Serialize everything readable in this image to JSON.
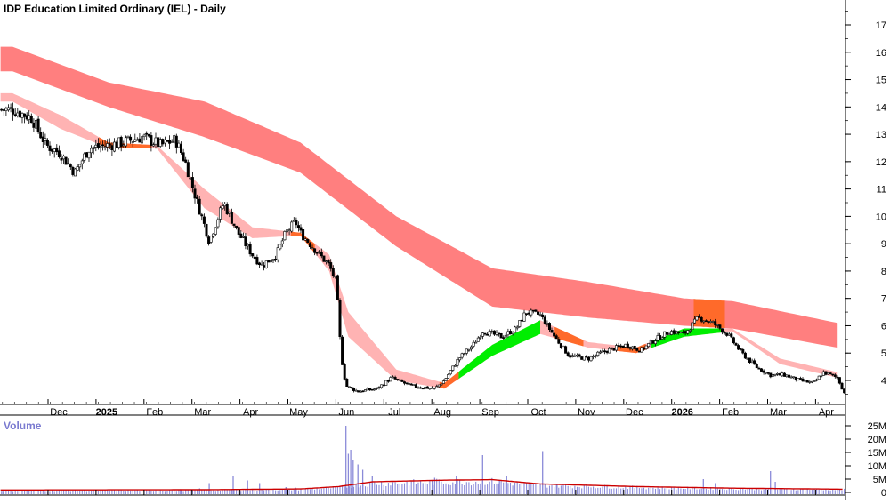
{
  "title": "IDP Education Limited Ordinary (IEL) - Daily",
  "colors": {
    "long_band": "#ff7f7f",
    "short_band": "#ffb3b3",
    "band_bull": "#00ee00",
    "band_cross": "#ff6a2a",
    "candle": "#000000",
    "volume_bar": "#8a8ad8",
    "volume_ma": "#cc0000",
    "grid": "#000000"
  },
  "chart_data": [
    {
      "type": "candlestick",
      "title": "IDP Education Limited Ordinary (IEL) - Daily",
      "x_tick_labels": [
        "Dec",
        "2025",
        "Feb",
        "Mar",
        "Apr",
        "May",
        "Jun",
        "Jul",
        "Aug",
        "Sep",
        "Oct",
        "Nov",
        "Dec",
        "2026",
        "Feb",
        "Mar",
        "Apr"
      ],
      "y_tick_labels": [
        "4",
        "5",
        "6",
        "7",
        "8",
        "9",
        "10",
        "11",
        "12",
        "13",
        "14",
        "15",
        "16",
        "17"
      ],
      "ylim": [
        3.3,
        17.8
      ],
      "x_month_index": [
        0,
        1,
        2,
        3,
        4,
        5,
        6,
        7,
        8,
        9,
        10,
        11,
        12,
        13,
        14,
        15,
        16
      ],
      "price_keypoints": [
        [
          -1.0,
          13.9
        ],
        [
          -0.6,
          13.6
        ],
        [
          -0.3,
          12.6
        ],
        [
          0.0,
          12.3
        ],
        [
          0.3,
          11.6
        ],
        [
          0.6,
          12.5
        ],
        [
          1.0,
          12.6
        ],
        [
          1.3,
          12.7
        ],
        [
          1.7,
          12.9
        ],
        [
          2.1,
          12.6
        ],
        [
          2.4,
          12.8
        ],
        [
          2.6,
          12.0
        ],
        [
          2.8,
          10.8
        ],
        [
          3.1,
          9.1
        ],
        [
          3.4,
          10.5
        ],
        [
          3.7,
          9.4
        ],
        [
          4.0,
          8.6
        ],
        [
          4.2,
          8.2
        ],
        [
          4.5,
          8.6
        ],
        [
          4.7,
          9.4
        ],
        [
          4.9,
          9.8
        ],
        [
          5.0,
          9.4
        ],
        [
          5.3,
          8.8
        ],
        [
          5.6,
          8.2
        ],
        [
          5.75,
          7.6
        ],
        [
          5.85,
          4.9
        ],
        [
          5.95,
          3.8
        ],
        [
          6.2,
          3.6
        ],
        [
          6.6,
          3.7
        ],
        [
          6.9,
          4.1
        ],
        [
          7.3,
          3.8
        ],
        [
          7.8,
          3.7
        ],
        [
          8.0,
          4.0
        ],
        [
          8.3,
          4.8
        ],
        [
          8.6,
          5.3
        ],
        [
          8.8,
          5.8
        ],
        [
          9.2,
          5.6
        ],
        [
          9.5,
          5.9
        ],
        [
          9.7,
          6.5
        ],
        [
          10.0,
          6.4
        ],
        [
          10.3,
          5.6
        ],
        [
          10.6,
          4.9
        ],
        [
          11.0,
          4.8
        ],
        [
          11.4,
          5.1
        ],
        [
          11.8,
          5.3
        ],
        [
          12.1,
          5.1
        ],
        [
          12.4,
          5.5
        ],
        [
          12.7,
          5.8
        ],
        [
          13.0,
          5.7
        ],
        [
          13.3,
          6.3
        ],
        [
          13.6,
          6.1
        ],
        [
          13.9,
          5.7
        ],
        [
          14.2,
          5.0
        ],
        [
          14.5,
          4.5
        ],
        [
          14.8,
          4.2
        ],
        [
          15.1,
          4.2
        ],
        [
          15.4,
          4.0
        ],
        [
          15.7,
          3.9
        ],
        [
          15.9,
          4.3
        ],
        [
          16.2,
          4.1
        ],
        [
          16.35,
          3.5
        ]
      ],
      "long_band_top": [
        [
          -1.0,
          16.2
        ],
        [
          1.0,
          14.9
        ],
        [
          3.0,
          14.2
        ],
        [
          5.0,
          12.7
        ],
        [
          7.0,
          10.0
        ],
        [
          9.0,
          8.1
        ],
        [
          11.0,
          7.6
        ],
        [
          13.0,
          7.0
        ],
        [
          14.0,
          6.9
        ],
        [
          16.2,
          6.1
        ]
      ],
      "long_band_bottom": [
        [
          -1.0,
          15.3
        ],
        [
          1.0,
          14.0
        ],
        [
          3.0,
          12.9
        ],
        [
          5.0,
          11.6
        ],
        [
          7.0,
          8.9
        ],
        [
          9.0,
          6.7
        ],
        [
          11.0,
          6.3
        ],
        [
          13.0,
          6.0
        ],
        [
          14.0,
          5.9
        ],
        [
          16.2,
          5.2
        ]
      ],
      "short_band_top": [
        [
          -1.0,
          14.5
        ],
        [
          0.0,
          13.7
        ],
        [
          1.0,
          12.7
        ],
        [
          2.0,
          12.6
        ],
        [
          3.0,
          11.0
        ],
        [
          4.0,
          9.6
        ],
        [
          5.0,
          9.4
        ],
        [
          5.6,
          8.6
        ],
        [
          6.0,
          6.5
        ],
        [
          7.0,
          4.4
        ],
        [
          8.0,
          3.9
        ],
        [
          9.0,
          5.3
        ],
        [
          10.0,
          6.2
        ],
        [
          11.0,
          5.4
        ],
        [
          12.0,
          5.2
        ],
        [
          13.0,
          5.9
        ],
        [
          14.0,
          5.9
        ],
        [
          15.0,
          4.8
        ],
        [
          16.2,
          4.3
        ]
      ],
      "short_band_bottom": [
        [
          -1.0,
          14.2
        ],
        [
          0.0,
          13.2
        ],
        [
          1.0,
          12.5
        ],
        [
          2.0,
          12.5
        ],
        [
          3.0,
          10.3
        ],
        [
          4.0,
          9.2
        ],
        [
          5.0,
          9.3
        ],
        [
          5.6,
          8.0
        ],
        [
          6.0,
          5.6
        ],
        [
          7.0,
          4.0
        ],
        [
          8.0,
          3.7
        ],
        [
          9.0,
          4.9
        ],
        [
          10.0,
          5.7
        ],
        [
          11.0,
          5.2
        ],
        [
          12.0,
          5.0
        ],
        [
          13.0,
          5.6
        ],
        [
          14.0,
          5.8
        ],
        [
          15.0,
          4.6
        ],
        [
          16.2,
          4.1
        ]
      ],
      "band_highlights": [
        {
          "from": 0.8,
          "to": 1.9,
          "color": "cross"
        },
        {
          "from": 4.8,
          "to": 5.3,
          "color": "cross"
        },
        {
          "from": 7.9,
          "to": 8.3,
          "color": "cross"
        },
        {
          "from": 8.3,
          "to": 10.0,
          "color": "bull"
        },
        {
          "from": 10.3,
          "to": 10.9,
          "color": "cross"
        },
        {
          "from": 11.6,
          "to": 12.2,
          "color": "cross"
        },
        {
          "from": 12.3,
          "to": 13.8,
          "color": "bull"
        }
      ],
      "long_band_highlight": {
        "from": 13.2,
        "to": 13.85,
        "color": "cross"
      }
    },
    {
      "type": "bar",
      "title": "Volume",
      "y_tick_labels": [
        "0",
        "5M",
        "10M",
        "15M",
        "20M",
        "25M"
      ],
      "ylim": [
        0,
        27
      ],
      "avg_keypoints": [
        [
          -1.0,
          0.9
        ],
        [
          3.0,
          1.0
        ],
        [
          5.0,
          1.3
        ],
        [
          5.8,
          2.2
        ],
        [
          6.5,
          4.0
        ],
        [
          8.0,
          4.6
        ],
        [
          9.0,
          4.8
        ],
        [
          10.0,
          3.2
        ],
        [
          12.0,
          2.2
        ],
        [
          14.0,
          1.6
        ],
        [
          16.3,
          1.2
        ]
      ],
      "spikes": [
        [
          -1.2,
          0.6
        ],
        [
          2.5,
          1.2
        ],
        [
          2.9,
          1.5
        ],
        [
          3.1,
          3.5
        ],
        [
          3.6,
          6.0
        ],
        [
          3.9,
          4.5
        ],
        [
          4.15,
          3.5
        ],
        [
          4.7,
          2.0
        ],
        [
          4.9,
          1.8
        ],
        [
          5.95,
          25.0
        ],
        [
          6.0,
          14.5
        ],
        [
          6.05,
          16.0
        ],
        [
          6.1,
          12.0
        ],
        [
          6.2,
          10.5
        ],
        [
          6.3,
          8.5
        ],
        [
          6.5,
          6.0
        ],
        [
          7.8,
          5.5
        ],
        [
          8.25,
          6.0
        ],
        [
          8.8,
          14.0
        ],
        [
          9.15,
          4.5
        ],
        [
          9.3,
          6.0
        ],
        [
          10.05,
          15.5
        ],
        [
          10.35,
          3.0
        ],
        [
          13.4,
          5.0
        ],
        [
          13.65,
          3.5
        ],
        [
          14.8,
          8.0
        ],
        [
          14.9,
          4.0
        ]
      ]
    }
  ]
}
